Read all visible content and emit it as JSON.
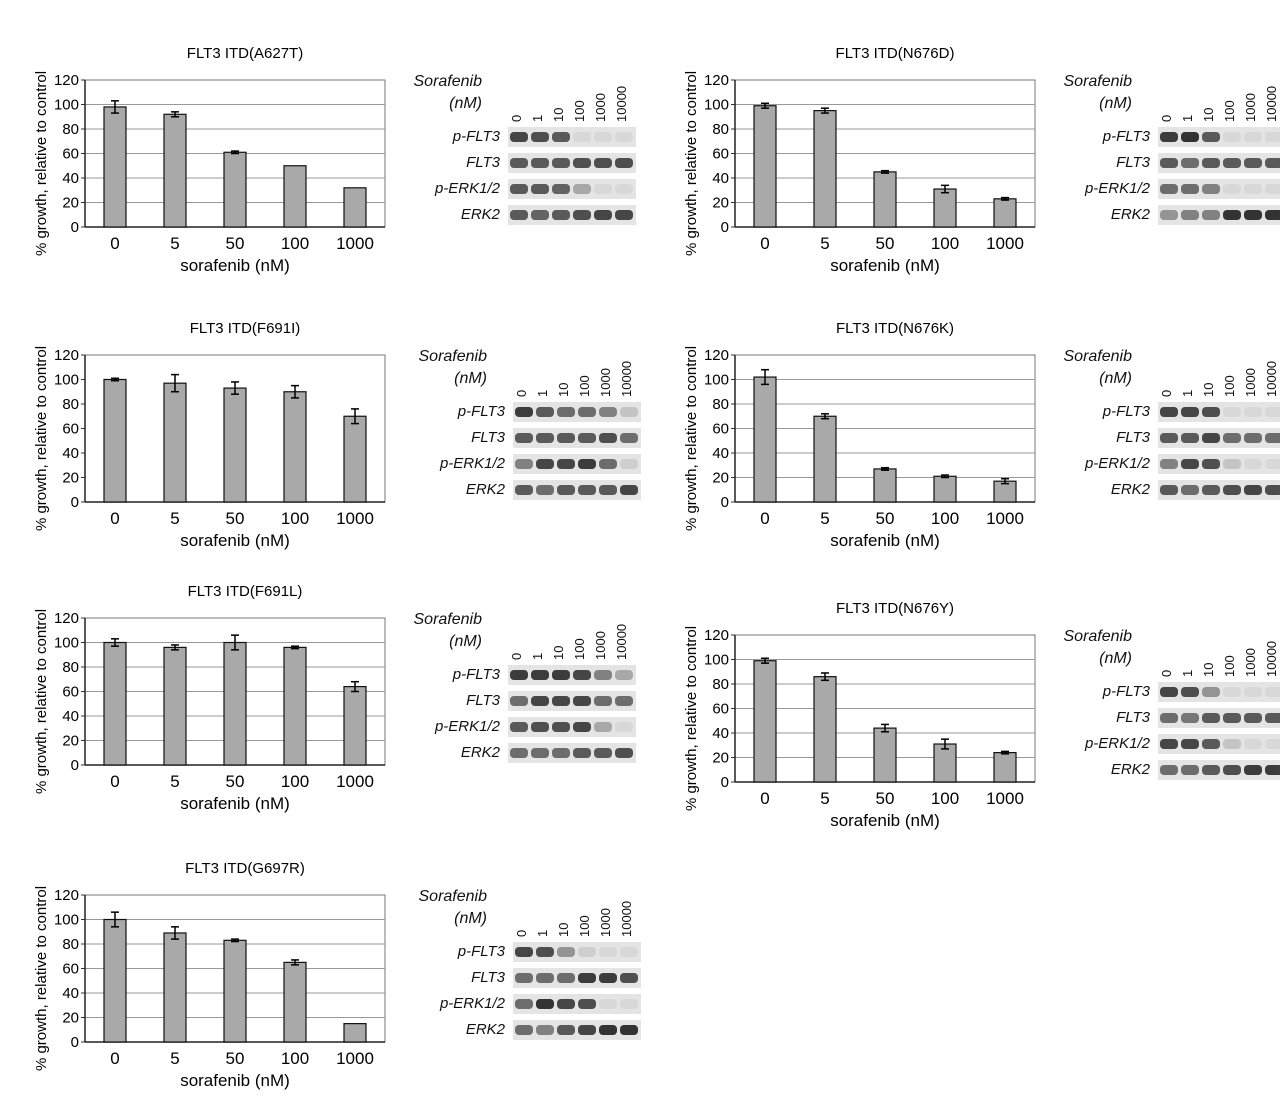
{
  "blot_labels": {
    "title_line1": "Sorafenib",
    "title_line2": "(nM)",
    "lanes": [
      "0",
      "1",
      "10",
      "100",
      "1000",
      "10000"
    ],
    "rows": [
      "p-FLT3",
      "FLT3",
      "p-ERK1/2",
      "ERK2"
    ]
  },
  "chart_data": [
    {
      "id": "A627T",
      "type": "bar",
      "title": "FLT3 ITD(A627T)",
      "categories": [
        "0",
        "5",
        "50",
        "100",
        "1000"
      ],
      "values": [
        98,
        92,
        61,
        50,
        32
      ],
      "errors": [
        5,
        2,
        1,
        0,
        0
      ],
      "xlabel": "sorafenib (nM)",
      "ylabel": "% growth, relative to control",
      "ylim": [
        0,
        120
      ],
      "yticks": [
        0,
        20,
        40,
        60,
        80,
        100,
        120
      ],
      "grid": true,
      "blot_intensity": [
        [
          0.8,
          0.75,
          0.7,
          0.05,
          0.05,
          0.05
        ],
        [
          0.7,
          0.7,
          0.7,
          0.75,
          0.75,
          0.75
        ],
        [
          0.7,
          0.7,
          0.65,
          0.3,
          0.05,
          0.05
        ],
        [
          0.7,
          0.65,
          0.7,
          0.75,
          0.8,
          0.8
        ]
      ]
    },
    {
      "id": "N676D",
      "type": "bar",
      "title": "FLT3 ITD(N676D)",
      "categories": [
        "0",
        "5",
        "50",
        "100",
        "1000"
      ],
      "values": [
        99,
        95,
        45,
        31,
        23
      ],
      "errors": [
        2,
        2,
        1,
        3,
        1
      ],
      "xlabel": "sorafenib (nM)",
      "ylabel": "% growth, relative to control",
      "ylim": [
        0,
        120
      ],
      "yticks": [
        0,
        20,
        40,
        60,
        80,
        100,
        120
      ],
      "grid": true,
      "blot_intensity": [
        [
          0.85,
          0.9,
          0.7,
          0.05,
          0.05,
          0.05
        ],
        [
          0.7,
          0.6,
          0.7,
          0.7,
          0.7,
          0.7
        ],
        [
          0.6,
          0.6,
          0.5,
          0.05,
          0.05,
          0.05
        ],
        [
          0.4,
          0.5,
          0.5,
          0.9,
          0.9,
          0.9
        ]
      ]
    },
    {
      "id": "F691I",
      "type": "bar",
      "title": "FLT3 ITD(F691I)",
      "categories": [
        "0",
        "5",
        "50",
        "100",
        "1000"
      ],
      "values": [
        100,
        97,
        93,
        90,
        70
      ],
      "errors": [
        1,
        7,
        5,
        5,
        6
      ],
      "xlabel": "sorafenib (nM)",
      "ylabel": "% growth, relative to control",
      "ylim": [
        0,
        120
      ],
      "yticks": [
        0,
        20,
        40,
        60,
        80,
        100,
        120
      ],
      "grid": false,
      "blot_intensity": [
        [
          0.85,
          0.7,
          0.6,
          0.6,
          0.5,
          0.15
        ],
        [
          0.7,
          0.7,
          0.7,
          0.7,
          0.75,
          0.6
        ],
        [
          0.5,
          0.8,
          0.8,
          0.85,
          0.6,
          0.1
        ],
        [
          0.7,
          0.6,
          0.7,
          0.7,
          0.7,
          0.8
        ]
      ]
    },
    {
      "id": "N676K",
      "type": "bar",
      "title": "FLT3 ITD(N676K)",
      "categories": [
        "0",
        "5",
        "50",
        "100",
        "1000"
      ],
      "values": [
        102,
        70,
        27,
        21,
        17
      ],
      "errors": [
        6,
        2,
        1,
        1,
        2
      ],
      "xlabel": "sorafenib (nM)",
      "ylabel": "% growth, relative to control",
      "ylim": [
        0,
        120
      ],
      "yticks": [
        0,
        20,
        40,
        60,
        80,
        100,
        120
      ],
      "grid": true,
      "blot_intensity": [
        [
          0.8,
          0.8,
          0.75,
          0.05,
          0.05,
          0.05
        ],
        [
          0.7,
          0.7,
          0.8,
          0.6,
          0.6,
          0.6
        ],
        [
          0.5,
          0.8,
          0.75,
          0.15,
          0.05,
          0.05
        ],
        [
          0.7,
          0.6,
          0.7,
          0.75,
          0.8,
          0.75
        ]
      ]
    },
    {
      "id": "F691L",
      "type": "bar",
      "title": "FLT3 ITD(F691L)",
      "categories": [
        "0",
        "5",
        "50",
        "100",
        "1000"
      ],
      "values": [
        100,
        96,
        100,
        96,
        64
      ],
      "errors": [
        3,
        2,
        6,
        1,
        4
      ],
      "xlabel": "sorafenib (nM)",
      "ylabel": "% growth, relative to control",
      "ylim": [
        0,
        120
      ],
      "yticks": [
        0,
        20,
        40,
        60,
        80,
        100,
        120
      ],
      "grid": true,
      "blot_intensity": [
        [
          0.85,
          0.85,
          0.85,
          0.8,
          0.5,
          0.3
        ],
        [
          0.6,
          0.8,
          0.8,
          0.8,
          0.6,
          0.6
        ],
        [
          0.7,
          0.75,
          0.75,
          0.8,
          0.3,
          0.05
        ],
        [
          0.6,
          0.6,
          0.6,
          0.7,
          0.7,
          0.75
        ]
      ]
    },
    {
      "id": "N676Y",
      "type": "bar",
      "title": "FLT3 ITD(N676Y)",
      "categories": [
        "0",
        "5",
        "50",
        "100",
        "1000"
      ],
      "values": [
        99,
        86,
        44,
        31,
        24
      ],
      "errors": [
        2,
        3,
        3,
        4,
        1
      ],
      "xlabel": "sorafenib (nM)",
      "ylabel": "% growth, relative to control",
      "ylim": [
        0,
        120
      ],
      "yticks": [
        0,
        20,
        40,
        60,
        80,
        100,
        120
      ],
      "grid": true,
      "blot_intensity": [
        [
          0.8,
          0.75,
          0.4,
          0.05,
          0.05,
          0.05
        ],
        [
          0.6,
          0.55,
          0.7,
          0.7,
          0.7,
          0.7
        ],
        [
          0.8,
          0.8,
          0.7,
          0.15,
          0.05,
          0.05
        ],
        [
          0.6,
          0.6,
          0.7,
          0.75,
          0.85,
          0.85
        ]
      ]
    },
    {
      "id": "G697R",
      "type": "bar",
      "title": "FLT3 ITD(G697R)",
      "categories": [
        "0",
        "5",
        "50",
        "100",
        "1000"
      ],
      "values": [
        100,
        89,
        83,
        65,
        15
      ],
      "errors": [
        6,
        5,
        1,
        2,
        0
      ],
      "xlabel": "sorafenib (nM)",
      "ylabel": "% growth, relative to control",
      "ylim": [
        0,
        120
      ],
      "yticks": [
        0,
        20,
        40,
        60,
        80,
        100,
        120
      ],
      "grid": true,
      "blot_intensity": [
        [
          0.8,
          0.75,
          0.4,
          0.1,
          0.05,
          0.05
        ],
        [
          0.6,
          0.6,
          0.6,
          0.85,
          0.85,
          0.75
        ],
        [
          0.6,
          0.9,
          0.8,
          0.75,
          0.05,
          0.05
        ],
        [
          0.6,
          0.5,
          0.7,
          0.8,
          0.9,
          0.9
        ]
      ]
    }
  ]
}
